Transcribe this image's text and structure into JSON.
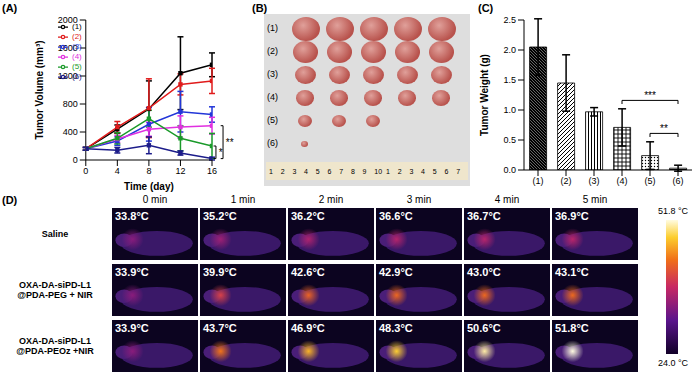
{
  "chart_data": [
    {
      "panel_label": "(A)",
      "type": "line",
      "x_label": "Time (day)",
      "y_label": "Tumor Volume (mm³)",
      "x": [
        0,
        4,
        8,
        12,
        16
      ],
      "xlim": [
        0,
        16
      ],
      "xticks": [
        0,
        4,
        8,
        12,
        16
      ],
      "ylim": [
        0,
        2000
      ],
      "yticks": [
        0,
        400,
        800,
        1200,
        1600,
        2000
      ],
      "legend": "upper left",
      "marker": "square",
      "series": [
        {
          "name": "(1)",
          "color": "#000000",
          "values": [
            160,
            440,
            730,
            1240,
            1360
          ],
          "errors": [
            20,
            60,
            400,
            520,
            170
          ]
        },
        {
          "name": "(2)",
          "color": "#e01b1b",
          "values": [
            160,
            470,
            740,
            1080,
            1130
          ],
          "errors": [
            20,
            80,
            420,
            150,
            180
          ]
        },
        {
          "name": "(3)",
          "color": "#2236d8",
          "values": [
            160,
            270,
            510,
            690,
            650
          ],
          "errors": [
            20,
            60,
            240,
            290,
            110
          ]
        },
        {
          "name": "(4)",
          "color": "#e030e0",
          "values": [
            160,
            300,
            440,
            470,
            490
          ],
          "errors": [
            20,
            50,
            100,
            160,
            120
          ]
        },
        {
          "name": "(5)",
          "color": "#1a9a2a",
          "values": [
            160,
            310,
            590,
            310,
            200
          ],
          "errors": [
            20,
            80,
            120,
            180,
            180
          ]
        },
        {
          "name": "(6)",
          "color": "#1c1c8a",
          "values": [
            160,
            140,
            210,
            100,
            20
          ],
          "errors": [
            20,
            40,
            120,
            30,
            20
          ]
        }
      ],
      "annotations": [
        {
          "text": "*",
          "between": [
            "(5)",
            "(6)"
          ]
        },
        {
          "text": "**",
          "between": [
            "(4)",
            "(6)"
          ]
        }
      ]
    },
    {
      "panel_label": "(C)",
      "type": "bar",
      "y_label": "Tumor Weight (g)",
      "categories": [
        "(1)",
        "(2)",
        "(3)",
        "(4)",
        "(5)",
        "(6)"
      ],
      "values": [
        2.05,
        1.45,
        0.97,
        0.71,
        0.24,
        0.03
      ],
      "errors": [
        0.47,
        0.47,
        0.07,
        0.31,
        0.23,
        0.05
      ],
      "color": "#000000",
      "ylim": [
        0,
        2.5
      ],
      "yticks": [
        {
          "value": 0,
          "label": "0.0"
        },
        {
          "value": 0.5,
          "label": "0.5"
        },
        {
          "value": 1,
          "label": "1.0"
        },
        {
          "value": 1.5,
          "label": "1.5"
        },
        {
          "value": 2,
          "label": "2.0"
        },
        {
          "value": 2.5,
          "label": "2.5"
        }
      ],
      "annotations": [
        {
          "text": "***",
          "between": [
            "(4)",
            "(6)"
          ]
        },
        {
          "text": "**",
          "between": [
            "(5)",
            "(6)"
          ]
        }
      ]
    }
  ],
  "photo_panel": {
    "panel_label": "(B)",
    "rows": [
      {
        "label": "(1)",
        "tumors": 5
      },
      {
        "label": "(2)",
        "tumors": 5
      },
      {
        "label": "(3)",
        "tumors": 5
      },
      {
        "label": "(4)",
        "tumors": 5
      },
      {
        "label": "(5)",
        "tumors": 3
      },
      {
        "label": "(6)",
        "tumors": 1
      }
    ],
    "ruler": [
      "1",
      "2",
      "3",
      "4",
      "5",
      "6",
      "7",
      "8",
      "9",
      "10",
      "1",
      "2",
      "3",
      "4",
      "5",
      "6",
      "7"
    ]
  },
  "thermal_panel": {
    "panel_label": "(D)",
    "columns": [
      "0 min",
      "1 min",
      "2 min",
      "3 min",
      "4 min",
      "5 min"
    ],
    "rows": [
      {
        "label": [
          "Saline"
        ],
        "temps": [
          {
            "value": 33.8,
            "label": "33.8°C"
          },
          {
            "value": 35.2,
            "label": "35.2°C"
          },
          {
            "value": 36.2,
            "label": "36.2°C"
          },
          {
            "value": 36.6,
            "label": "36.6°C"
          },
          {
            "value": 36.7,
            "label": "36.7°C"
          },
          {
            "value": 36.9,
            "label": "36.9°C"
          }
        ]
      },
      {
        "label": [
          "OXA-DA-siPD-L1",
          "@PDA-PEG + NIR"
        ],
        "temps": [
          {
            "value": 33.9,
            "label": "33.9°C"
          },
          {
            "value": 39.9,
            "label": "39.9°C"
          },
          {
            "value": 42.6,
            "label": "42.6°C"
          },
          {
            "value": 42.9,
            "label": "42.9°C"
          },
          {
            "value": 43.0,
            "label": "43.0°C"
          },
          {
            "value": 43.1,
            "label": "43.1°C"
          }
        ]
      },
      {
        "label": [
          "OXA-DA-siPD-L1",
          "@PDA-PEOz +NIR"
        ],
        "temps": [
          {
            "value": 33.9,
            "label": "33.9°C"
          },
          {
            "value": 43.7,
            "label": "43.7°C"
          },
          {
            "value": 46.9,
            "label": "46.9°C"
          },
          {
            "value": 48.3,
            "label": "48.3°C"
          },
          {
            "value": 50.6,
            "label": "50.6°C"
          },
          {
            "value": 51.8,
            "label": "51.8°C"
          }
        ]
      }
    ],
    "colorbar": {
      "min": {
        "value": 24.0,
        "label": "24.0 °C"
      },
      "max": {
        "value": 51.8,
        "label": "51.8 °C"
      }
    }
  }
}
